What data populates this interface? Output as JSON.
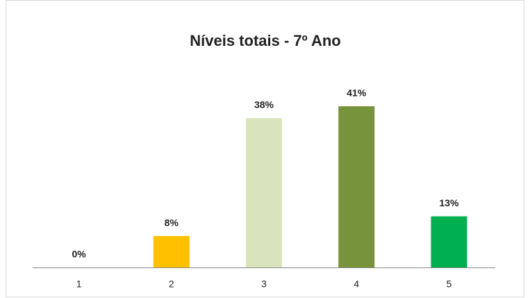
{
  "chart_data": {
    "type": "bar",
    "title": "Níveis totais - 7º Ano",
    "categories": [
      "1",
      "2",
      "3",
      "4",
      "5"
    ],
    "values": [
      0,
      8,
      38,
      41,
      13
    ],
    "value_labels": [
      "0%",
      "8%",
      "38%",
      "41%",
      "13%"
    ],
    "colors": [
      "#FFC000",
      "#FFC000",
      "#D8E4BC",
      "#77933C",
      "#00B050"
    ]
  }
}
